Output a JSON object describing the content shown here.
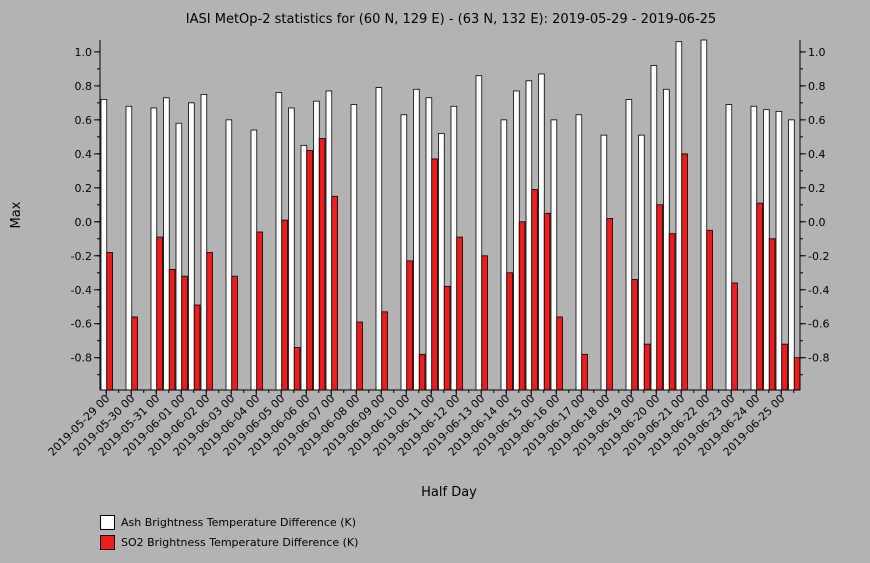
{
  "chart_data": {
    "type": "bar",
    "title": "IASI MetOp-2 statistics for (60 N, 129 E) - (63 N, 132 E): 2019-05-29 - 2019-06-25",
    "xlabel": "Half Day",
    "ylabel": "Max",
    "ylim": [
      -0.99,
      1.07
    ],
    "yticks": [
      -0.8,
      -0.6,
      -0.4,
      -0.2,
      0.0,
      0.2,
      0.4,
      0.6,
      0.8,
      1.0
    ],
    "ytick_labels": [
      "-0.8",
      "-0.6",
      "-0.4",
      "-0.2",
      "0.0",
      "0.2",
      "0.4",
      "0.6",
      "0.8",
      "1.0"
    ],
    "categories": [
      "2019-05-29 00",
      "2019-05-29 12",
      "2019-05-30 00",
      "2019-05-30 12",
      "2019-05-31 00",
      "2019-05-31 12",
      "2019-06-01 00",
      "2019-06-01 12",
      "2019-06-02 00",
      "2019-06-02 12",
      "2019-06-03 00",
      "2019-06-03 12",
      "2019-06-04 00",
      "2019-06-04 12",
      "2019-06-05 00",
      "2019-06-05 12",
      "2019-06-06 00",
      "2019-06-06 12",
      "2019-06-07 00",
      "2019-06-07 12",
      "2019-06-08 00",
      "2019-06-08 12",
      "2019-06-09 00",
      "2019-06-09 12",
      "2019-06-10 00",
      "2019-06-10 12",
      "2019-06-11 00",
      "2019-06-11 12",
      "2019-06-12 00",
      "2019-06-12 12",
      "2019-06-13 00",
      "2019-06-13 12",
      "2019-06-14 00",
      "2019-06-14 12",
      "2019-06-15 00",
      "2019-06-15 12",
      "2019-06-16 00",
      "2019-06-16 12",
      "2019-06-17 00",
      "2019-06-17 12",
      "2019-06-18 00",
      "2019-06-18 12",
      "2019-06-19 00",
      "2019-06-19 12",
      "2019-06-20 00",
      "2019-06-20 12",
      "2019-06-21 00",
      "2019-06-21 12",
      "2019-06-22 00",
      "2019-06-22 12",
      "2019-06-23 00",
      "2019-06-23 12",
      "2019-06-24 00",
      "2019-06-24 12",
      "2019-06-25 00",
      "2019-06-25 12"
    ],
    "xtick_labels": [
      "2019-05-29 00",
      "2019-05-30 00",
      "2019-05-31 00",
      "2019-06-01 00",
      "2019-06-02 00",
      "2019-06-03 00",
      "2019-06-04 00",
      "2019-06-05 00",
      "2019-06-06 00",
      "2019-06-07 00",
      "2019-06-08 00",
      "2019-06-09 00",
      "2019-06-10 00",
      "2019-06-11 00",
      "2019-06-12 00",
      "2019-06-13 00",
      "2019-06-14 00",
      "2019-06-15 00",
      "2019-06-16 00",
      "2019-06-17 00",
      "2019-06-18 00",
      "2019-06-19 00",
      "2019-06-20 00",
      "2019-06-21 00",
      "2019-06-22 00",
      "2019-06-23 00",
      "2019-06-24 00",
      "2019-06-25 00"
    ],
    "series": [
      {
        "name": "Ash Brightness Temperature Difference (K)",
        "color": "#ffffff",
        "values": [
          0.72,
          null,
          0.68,
          null,
          0.67,
          0.73,
          0.58,
          0.7,
          0.75,
          null,
          0.6,
          null,
          0.54,
          null,
          0.76,
          0.67,
          0.45,
          0.71,
          0.77,
          null,
          0.69,
          null,
          0.79,
          null,
          0.63,
          0.78,
          0.73,
          0.52,
          0.68,
          null,
          0.86,
          null,
          0.6,
          0.77,
          0.83,
          0.87,
          0.6,
          null,
          0.63,
          null,
          0.51,
          null,
          0.72,
          0.51,
          0.92,
          0.78,
          1.06,
          null,
          1.07,
          null,
          0.69,
          null,
          0.68,
          0.66,
          0.65,
          0.6
        ]
      },
      {
        "name": "SO2 Brightness Temperature Difference (K)",
        "color": "#ee1c1c",
        "values": [
          -0.18,
          null,
          -0.56,
          null,
          -0.09,
          -0.28,
          -0.32,
          -0.49,
          -0.18,
          null,
          -0.32,
          null,
          -0.06,
          null,
          0.01,
          -0.74,
          0.42,
          0.49,
          0.15,
          null,
          -0.59,
          null,
          -0.53,
          null,
          -0.23,
          -0.78,
          0.37,
          -0.38,
          -0.09,
          null,
          -0.2,
          null,
          -0.3,
          0.0,
          0.19,
          0.05,
          -0.56,
          null,
          -0.78,
          null,
          0.02,
          null,
          -0.34,
          -0.72,
          0.1,
          -0.07,
          0.4,
          null,
          -0.05,
          null,
          -0.36,
          null,
          0.11,
          -0.1,
          -0.72,
          -0.8
        ]
      }
    ],
    "legend_position": "bottom-left",
    "grid": false
  }
}
